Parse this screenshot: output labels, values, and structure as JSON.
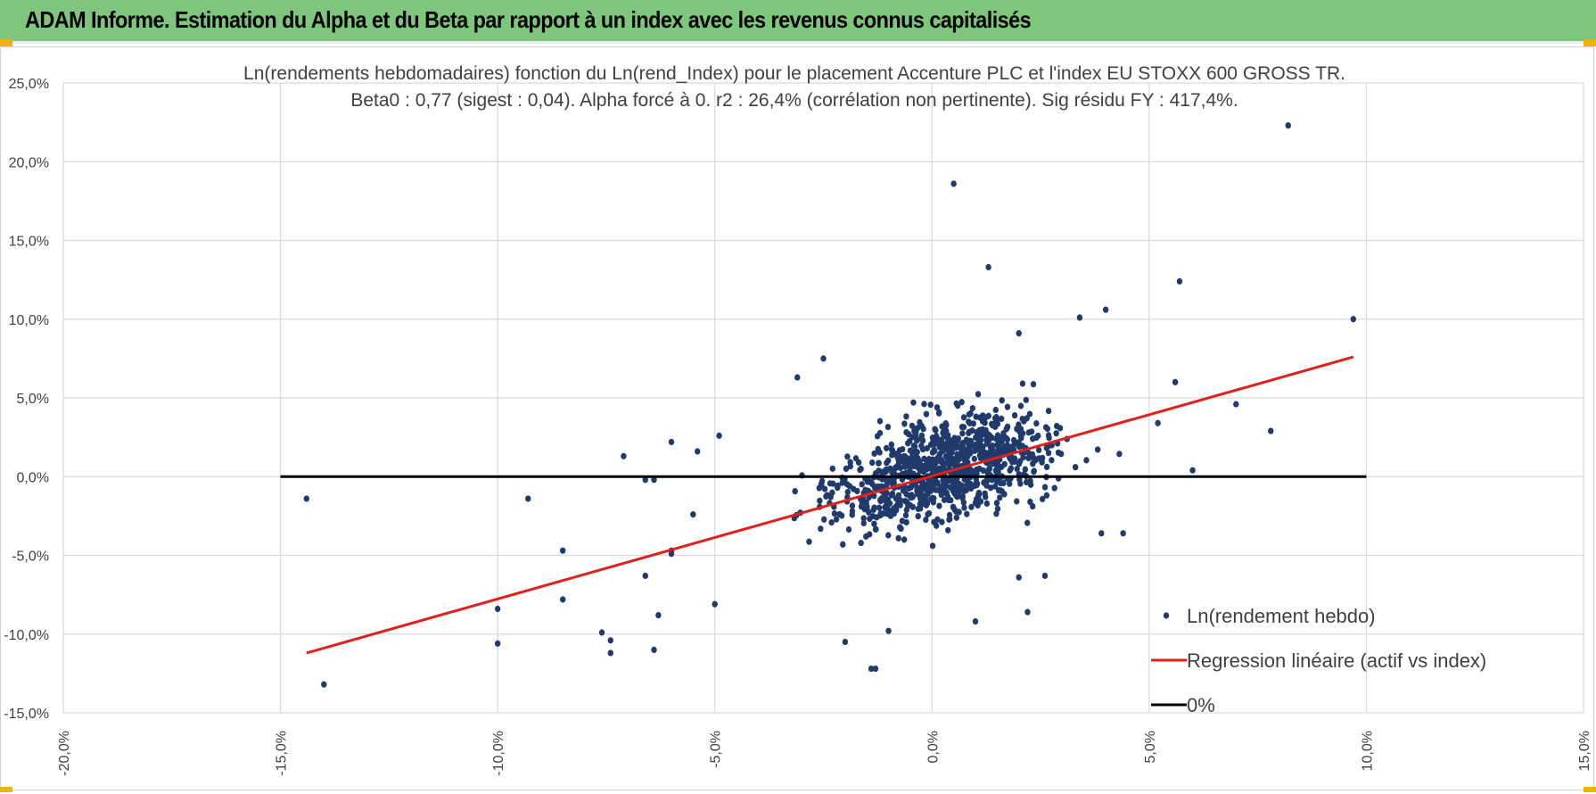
{
  "header": {
    "title": "ADAM Informe. Estimation du Alpha et du Beta par rapport à un index avec les revenus connus capitalisés"
  },
  "colors": {
    "header_bg": "#7dc67b",
    "points": "#1f3a6b",
    "regression": "#e0201c",
    "zero_line": "#000000",
    "grid": "#d9d9d9"
  },
  "chart_data": {
    "type": "scatter",
    "title": "Ln(rendements hebdomadaires) fonction du Ln(rend_Index) pour le placement Accenture PLC et l'index EU STOXX 600 GROSS TR.",
    "subtitle": "Beta0 : 0,77 (sigest : 0,04).  Alpha forcé à 0. r2 : 26,4% (corrélation non pertinente). Sig résidu FY : 417,4%.",
    "xlim": [
      -0.2,
      0.15
    ],
    "ylim": [
      -0.15,
      0.25
    ],
    "x_ticks": [
      -0.2,
      -0.15,
      -0.1,
      -0.05,
      0.0,
      0.05,
      0.1,
      0.15
    ],
    "y_ticks": [
      -0.15,
      -0.1,
      -0.05,
      0.0,
      0.05,
      0.1,
      0.15,
      0.2,
      0.25
    ],
    "x_tick_labels": [
      "-20,0%",
      "-15,0%",
      "-10,0%",
      "-5,0%",
      "0,0%",
      "5,0%",
      "10,0%",
      "15,0%"
    ],
    "y_tick_labels": [
      "-15,0%",
      "-10,0%",
      "-5,0%",
      "0,0%",
      "5,0%",
      "10,0%",
      "15,0%",
      "20,0%",
      "25,0%"
    ],
    "grid": true,
    "legend_position": "bottom-right",
    "series": [
      {
        "name": "Ln(rendement hebdo)",
        "kind": "scatter",
        "color": "#1f3a6b",
        "highlighted_points": [
          [
            -0.144,
            -0.014
          ],
          [
            -0.14,
            -0.132
          ],
          [
            -0.1,
            -0.084
          ],
          [
            -0.1,
            -0.106
          ],
          [
            -0.093,
            -0.014
          ],
          [
            -0.085,
            -0.047
          ],
          [
            -0.085,
            -0.078
          ],
          [
            -0.076,
            -0.099
          ],
          [
            -0.074,
            -0.104
          ],
          [
            -0.074,
            -0.112
          ],
          [
            -0.071,
            0.013
          ],
          [
            -0.066,
            -0.002
          ],
          [
            -0.066,
            -0.063
          ],
          [
            -0.064,
            -0.002
          ],
          [
            -0.064,
            -0.11
          ],
          [
            -0.063,
            -0.088
          ],
          [
            -0.06,
            0.022
          ],
          [
            -0.06,
            -0.047
          ],
          [
            -0.06,
            -0.049
          ],
          [
            -0.055,
            -0.024
          ],
          [
            -0.054,
            0.016
          ],
          [
            -0.05,
            -0.081
          ],
          [
            -0.049,
            0.026
          ],
          [
            -0.031,
            0.063
          ],
          [
            -0.025,
            0.075
          ],
          [
            -0.02,
            -0.105
          ],
          [
            -0.014,
            -0.122
          ],
          [
            -0.013,
            -0.122
          ],
          [
            -0.01,
            -0.098
          ],
          [
            0.005,
            0.186
          ],
          [
            0.013,
            0.133
          ],
          [
            0.02,
            0.091
          ],
          [
            0.034,
            0.101
          ],
          [
            0.04,
            0.106
          ],
          [
            0.057,
            0.124
          ],
          [
            0.082,
            0.223
          ],
          [
            0.097,
            0.1
          ],
          [
            0.07,
            0.046
          ],
          [
            0.078,
            0.029
          ],
          [
            0.06,
            0.004
          ],
          [
            0.052,
            0.034
          ],
          [
            0.056,
            0.06
          ],
          [
            0.044,
            -0.036
          ],
          [
            0.039,
            -0.036
          ],
          [
            0.02,
            -0.064
          ],
          [
            0.022,
            -0.086
          ],
          [
            0.026,
            -0.063
          ],
          [
            0.01,
            -0.092
          ]
        ],
        "cloud_center": [
          0.003,
          0.005
        ],
        "cloud_count": 950
      },
      {
        "name": "Regression linéaire (actif vs index)",
        "kind": "line",
        "color": "#e0201c",
        "points": [
          [
            -0.144,
            -0.112
          ],
          [
            0.097,
            0.076
          ]
        ]
      },
      {
        "name": "0%",
        "kind": "line",
        "color": "#000000",
        "points": [
          [
            -0.15,
            0.0
          ],
          [
            0.1,
            0.0
          ]
        ]
      }
    ]
  }
}
